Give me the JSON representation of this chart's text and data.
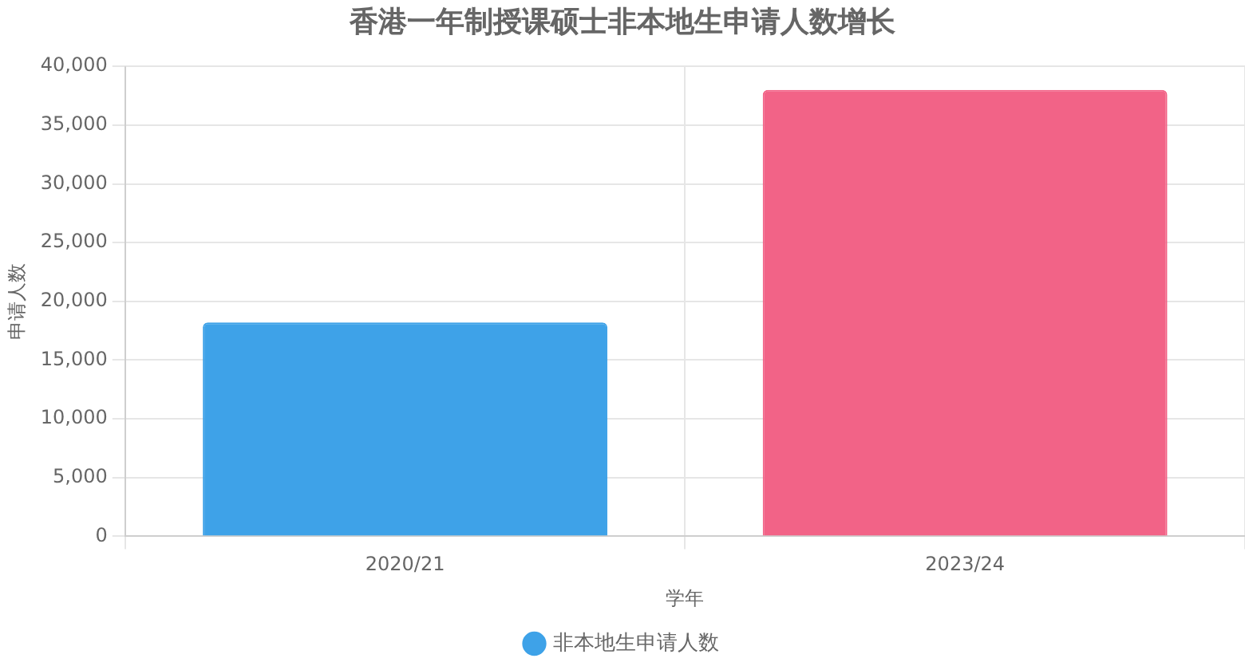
{
  "chart_data": {
    "type": "bar",
    "title": "香港一年制授课硕士非本地生申请人数增长",
    "xlabel": "学年",
    "ylabel": "申请人数",
    "categories": [
      "2020/21",
      "2023/24"
    ],
    "series": [
      {
        "name": "非本地生申请人数",
        "colors": [
          "#3ea2e8",
          "#f26387"
        ],
        "values": [
          18200,
          38000
        ]
      }
    ],
    "ylim": [
      0,
      40000
    ],
    "yticks": [
      0,
      {
        "value": 5000,
        "label": "5,000"
      },
      {
        "value": 10000,
        "label": "10,000"
      },
      {
        "value": 15000,
        "label": "15,000"
      },
      {
        "value": 20000,
        "label": "20,000"
      },
      {
        "value": 25000,
        "label": "25,000"
      },
      {
        "value": 30000,
        "label": "30,000"
      },
      {
        "value": 35000,
        "label": "35,000"
      },
      {
        "value": 40000,
        "label": "40,000"
      }
    ],
    "grid": true,
    "legend": "bottom"
  }
}
